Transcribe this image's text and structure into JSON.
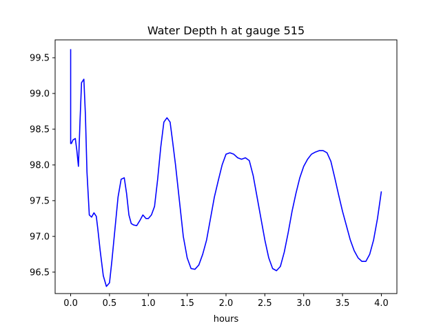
{
  "chart_data": {
    "type": "line",
    "title": "Water Depth h at gauge 515",
    "xlabel": "hours",
    "ylabel": "",
    "xlim": [
      -0.2,
      4.2
    ],
    "ylim": [
      96.2,
      99.75
    ],
    "xticks": [
      0.0,
      0.5,
      1.0,
      1.5,
      2.0,
      2.5,
      3.0,
      3.5,
      4.0
    ],
    "xtick_labels": [
      "0.0",
      "0.5",
      "1.0",
      "1.5",
      "2.0",
      "2.5",
      "3.0",
      "3.5",
      "4.0"
    ],
    "yticks": [
      96.5,
      97.0,
      97.5,
      98.0,
      98.5,
      99.0,
      99.5
    ],
    "ytick_labels": [
      "96.5",
      "97.0",
      "97.5",
      "98.0",
      "98.5",
      "99.0",
      "99.5"
    ],
    "grid": false,
    "series": [
      {
        "color": "#0000ff",
        "x": [
          0.0,
          0.0,
          0.01,
          0.03,
          0.06,
          0.08,
          0.1,
          0.12,
          0.14,
          0.17,
          0.19,
          0.21,
          0.24,
          0.27,
          0.3,
          0.33,
          0.35,
          0.38,
          0.42,
          0.46,
          0.5,
          0.53,
          0.57,
          0.61,
          0.65,
          0.69,
          0.72,
          0.75,
          0.78,
          0.81,
          0.85,
          0.89,
          0.93,
          0.97,
          1.0,
          1.04,
          1.08,
          1.12,
          1.16,
          1.2,
          1.24,
          1.28,
          1.31,
          1.35,
          1.4,
          1.45,
          1.5,
          1.55,
          1.6,
          1.65,
          1.7,
          1.75,
          1.8,
          1.85,
          1.9,
          1.95,
          2.0,
          2.05,
          2.1,
          2.15,
          2.2,
          2.25,
          2.3,
          2.35,
          2.4,
          2.45,
          2.5,
          2.55,
          2.6,
          2.65,
          2.7,
          2.75,
          2.8,
          2.85,
          2.9,
          2.95,
          3.0,
          3.05,
          3.1,
          3.15,
          3.2,
          3.25,
          3.3,
          3.35,
          3.4,
          3.45,
          3.5,
          3.55,
          3.6,
          3.65,
          3.7,
          3.75,
          3.8,
          3.85,
          3.9,
          3.95,
          4.0
        ],
        "y": [
          99.62,
          98.3,
          98.3,
          98.35,
          98.37,
          98.2,
          97.98,
          98.6,
          99.15,
          99.2,
          98.7,
          97.9,
          97.3,
          97.27,
          97.33,
          97.28,
          97.1,
          96.8,
          96.45,
          96.3,
          96.35,
          96.65,
          97.1,
          97.55,
          97.8,
          97.82,
          97.6,
          97.3,
          97.18,
          97.16,
          97.15,
          97.22,
          97.3,
          97.25,
          97.25,
          97.3,
          97.42,
          97.8,
          98.25,
          98.6,
          98.66,
          98.6,
          98.35,
          98.0,
          97.5,
          97.0,
          96.7,
          96.55,
          96.54,
          96.6,
          96.75,
          96.95,
          97.25,
          97.55,
          97.78,
          98.0,
          98.15,
          98.17,
          98.15,
          98.1,
          98.08,
          98.1,
          98.06,
          97.85,
          97.55,
          97.25,
          96.95,
          96.7,
          96.55,
          96.52,
          96.58,
          96.78,
          97.05,
          97.35,
          97.6,
          97.82,
          97.98,
          98.08,
          98.15,
          98.18,
          98.2,
          98.2,
          98.17,
          98.05,
          97.82,
          97.58,
          97.35,
          97.15,
          96.95,
          96.8,
          96.7,
          96.65,
          96.65,
          96.75,
          96.95,
          97.25,
          97.63
        ]
      }
    ]
  }
}
